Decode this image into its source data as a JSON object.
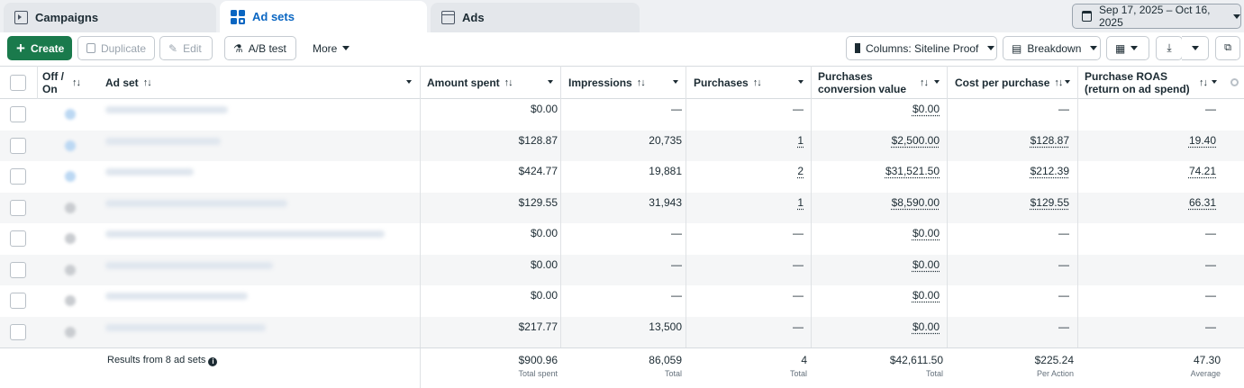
{
  "tabs": [
    {
      "label": "Campaigns",
      "icon": "campaign-icon"
    },
    {
      "label": "Ad sets",
      "icon": "adsets-grid-icon"
    },
    {
      "label": "Ads",
      "icon": "ads-icon"
    }
  ],
  "date_range": "Sep 17, 2025 – Oct 16, 2025",
  "toolbar": {
    "create": "Create",
    "duplicate": "Duplicate",
    "edit": "Edit",
    "ab_test": "A/B test",
    "more": "More",
    "columns": "Columns: Siteline Proof",
    "breakdown": "Breakdown"
  },
  "columns": {
    "off_on": "Off / On",
    "ad_set": "Ad set",
    "amount_spent": "Amount spent",
    "impressions": "Impressions",
    "purchases": "Purchases",
    "purchases_conversion_value": "Purchases conversion value",
    "cost_per_purchase": "Cost per purchase",
    "purchase_roas": "Purchase ROAS (return on ad spend)"
  },
  "rows": [
    {
      "amount_spent": "$0.00",
      "impressions": "—",
      "purchases": "—",
      "conv_value": "$0.00",
      "cost_per_purchase": "—",
      "roas": "—",
      "status": "blue"
    },
    {
      "amount_spent": "$128.87",
      "impressions": "20,735",
      "purchases": "1",
      "conv_value": "$2,500.00",
      "cost_per_purchase": "$128.87",
      "roas": "19.40",
      "status": "blue"
    },
    {
      "amount_spent": "$424.77",
      "impressions": "19,881",
      "purchases": "2",
      "conv_value": "$31,521.50",
      "cost_per_purchase": "$212.39",
      "roas": "74.21",
      "status": "blue"
    },
    {
      "amount_spent": "$129.55",
      "impressions": "31,943",
      "purchases": "1",
      "conv_value": "$8,590.00",
      "cost_per_purchase": "$129.55",
      "roas": "66.31",
      "status": "grey"
    },
    {
      "amount_spent": "$0.00",
      "impressions": "—",
      "purchases": "—",
      "conv_value": "$0.00",
      "cost_per_purchase": "—",
      "roas": "—",
      "status": "grey"
    },
    {
      "amount_spent": "$0.00",
      "impressions": "—",
      "purchases": "—",
      "conv_value": "$0.00",
      "cost_per_purchase": "—",
      "roas": "—",
      "status": "grey"
    },
    {
      "amount_spent": "$0.00",
      "impressions": "—",
      "purchases": "—",
      "conv_value": "$0.00",
      "cost_per_purchase": "—",
      "roas": "—",
      "status": "grey"
    },
    {
      "amount_spent": "$217.77",
      "impressions": "13,500",
      "purchases": "—",
      "conv_value": "$0.00",
      "cost_per_purchase": "—",
      "roas": "—",
      "status": "grey"
    }
  ],
  "footer": {
    "results_label": "Results from 8 ad sets",
    "amount_spent": {
      "value": "$900.96",
      "sub": "Total spent"
    },
    "impressions": {
      "value": "86,059",
      "sub": "Total"
    },
    "purchases": {
      "value": "4",
      "sub": "Total"
    },
    "conv_value": {
      "value": "$42,611.50",
      "sub": "Total"
    },
    "cost_per_purchase": {
      "value": "$225.24",
      "sub": "Per Action"
    },
    "roas": {
      "value": "47.30",
      "sub": "Average"
    }
  },
  "colors": {
    "create_button": "#1a7a4c",
    "active_tab_text": "#0a66c2",
    "status_blue": "#bcd8f3",
    "status_grey": "#c9ccd0"
  }
}
